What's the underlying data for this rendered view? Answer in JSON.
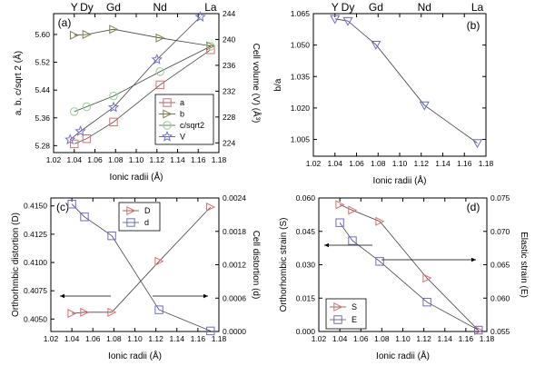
{
  "chart_data": [
    {
      "panel": "(a)",
      "type": "line",
      "xlabel": "Ionic radii (Å)",
      "ylabel": "a, b, c/sqrt 2 (Å)",
      "y2label": "Cell volume (V) (Å³)",
      "xlim": [
        1.02,
        1.18
      ],
      "ylim": [
        5.26,
        5.66
      ],
      "y2lim": [
        222.5,
        244
      ],
      "xticks": [
        "1.02",
        "1.04",
        "1.06",
        "1.08",
        "1.10",
        "1.12",
        "1.14",
        "1.16",
        "1.18"
      ],
      "yticks": [
        "5.28",
        "5.36",
        "5.44",
        "5.52",
        "5.60"
      ],
      "y2ticks": [
        "224",
        "228",
        "232",
        "236",
        "240",
        "244"
      ],
      "top_labels": [
        {
          "text": "Y",
          "x": 1.04
        },
        {
          "text": "Dy",
          "x": 1.052
        },
        {
          "text": "Gd",
          "x": 1.078
        },
        {
          "text": "Nd",
          "x": 1.123
        },
        {
          "text": "La",
          "x": 1.172
        }
      ],
      "legend": {
        "position": "bottom-right"
      },
      "series": [
        {
          "name": "a",
          "marker": "square",
          "color": "#e06a6a",
          "axis": "left",
          "x": [
            1.04,
            1.052,
            1.078,
            1.123,
            1.172
          ],
          "y": [
            5.285,
            5.3,
            5.348,
            5.455,
            5.556
          ]
        },
        {
          "name": "b",
          "marker": "triangle-right",
          "color": "#7f7f45",
          "axis": "left",
          "x": [
            1.04,
            1.052,
            1.078,
            1.123,
            1.172
          ],
          "y": [
            5.598,
            5.6,
            5.615,
            5.59,
            5.567
          ]
        },
        {
          "name": "c/sqrt2",
          "marker": "circle",
          "color": "#8ed08e",
          "axis": "left",
          "x": [
            1.04,
            1.052,
            1.078,
            1.123,
            1.172
          ],
          "y": [
            5.378,
            5.392,
            5.423,
            5.493,
            5.566
          ]
        },
        {
          "name": "V",
          "marker": "star",
          "color": "#7070d6",
          "axis": "right",
          "x": [
            1.036,
            1.046,
            1.078,
            1.12,
            1.162
          ],
          "y": [
            224.5,
            225.8,
            229.5,
            236.9,
            243.5
          ]
        }
      ]
    },
    {
      "panel": "(b)",
      "type": "line",
      "xlabel": "Ionic radii (Å)",
      "ylabel": "b/a",
      "xlim": [
        1.02,
        1.18
      ],
      "ylim": [
        0.997,
        1.065
      ],
      "xticks": [
        "1.02",
        "1.04",
        "1.06",
        "1.08",
        "1.10",
        "1.12",
        "1.14",
        "1.16",
        "1.18"
      ],
      "yticks": [
        "1.005",
        "1.020",
        "1.035",
        "1.050",
        "1.065"
      ],
      "top_labels": [
        {
          "text": "Y",
          "x": 1.04
        },
        {
          "text": "Dy",
          "x": 1.052
        },
        {
          "text": "Gd",
          "x": 1.078
        },
        {
          "text": "Nd",
          "x": 1.123
        },
        {
          "text": "La",
          "x": 1.172
        }
      ],
      "series": [
        {
          "marker": "triangle-down",
          "color": "#6a6ad0",
          "x": [
            1.04,
            1.052,
            1.078,
            1.123,
            1.172
          ],
          "y": [
            1.0625,
            1.0615,
            1.0502,
            1.0213,
            1.0033
          ]
        }
      ]
    },
    {
      "panel": "(c)",
      "type": "line",
      "xlabel": "Ionic radii (Å)",
      "ylabel": "Orthorhmbic distortion (D)",
      "y2label": "Cell distortion (d)",
      "xlim": [
        1.02,
        1.18
      ],
      "ylim": [
        0.4039,
        0.4157
      ],
      "y2lim": [
        0,
        0.0024
      ],
      "xticks": [
        "1.02",
        "1.04",
        "1.06",
        "1.08",
        "1.10",
        "1.12",
        "1.14",
        "1.16",
        "1.18"
      ],
      "yticks": [
        "0.4050",
        "0.4075",
        "0.4100",
        "0.4125",
        "0.4150"
      ],
      "y2ticks": [
        "0.0000",
        "0.0006",
        "0.0012",
        "0.0018",
        "0.0024"
      ],
      "legend": {
        "position": "top-center"
      },
      "series": [
        {
          "name": "D",
          "marker": "triangle-right",
          "color": "#e06a6a",
          "axis": "left",
          "x": [
            1.04,
            1.052,
            1.078,
            1.123,
            1.172
          ],
          "y": [
            0.4055,
            0.4056,
            0.4056,
            0.4101,
            0.4149
          ]
        },
        {
          "name": "d",
          "marker": "square",
          "color": "#6a6ad0",
          "axis": "right",
          "x": [
            1.04,
            1.052,
            1.078,
            1.123,
            1.172
          ],
          "y": [
            0.00229,
            0.00206,
            0.00172,
            0.00039,
            1e-05
          ]
        }
      ]
    },
    {
      "panel": "(d)",
      "type": "line",
      "xlabel": "Ionic radii (Å)",
      "ylabel": "Orthorhombic strain (S)",
      "y2label": "Elastic strain (E)",
      "xlim": [
        1.02,
        1.18
      ],
      "ylim": [
        0,
        0.06
      ],
      "y2lim": [
        0.055,
        0.075
      ],
      "xticks": [
        "1.02",
        "1.04",
        "1.06",
        "1.08",
        "1.10",
        "1.12",
        "1.14",
        "1.16",
        "1.18"
      ],
      "yticks": [
        "0.000",
        "0.015",
        "0.030",
        "0.045",
        "0.060"
      ],
      "y2ticks": [
        "0.055",
        "0.060",
        "0.065",
        "0.070",
        "0.075"
      ],
      "legend": {
        "position": "bottom-left"
      },
      "series": [
        {
          "name": "S",
          "marker": "triangle-right",
          "color": "#e06a6a",
          "axis": "left",
          "x": [
            1.04,
            1.052,
            1.078,
            1.123,
            1.172
          ],
          "y": [
            0.057,
            0.0545,
            0.0495,
            0.024,
            0.0005
          ]
        },
        {
          "name": "E",
          "marker": "square",
          "color": "#6a6ad0",
          "axis": "right",
          "x": [
            1.04,
            1.052,
            1.078,
            1.123,
            1.172
          ],
          "y": [
            0.0713,
            0.0686,
            0.0655,
            0.0594,
            0.0552
          ]
        }
      ]
    }
  ]
}
